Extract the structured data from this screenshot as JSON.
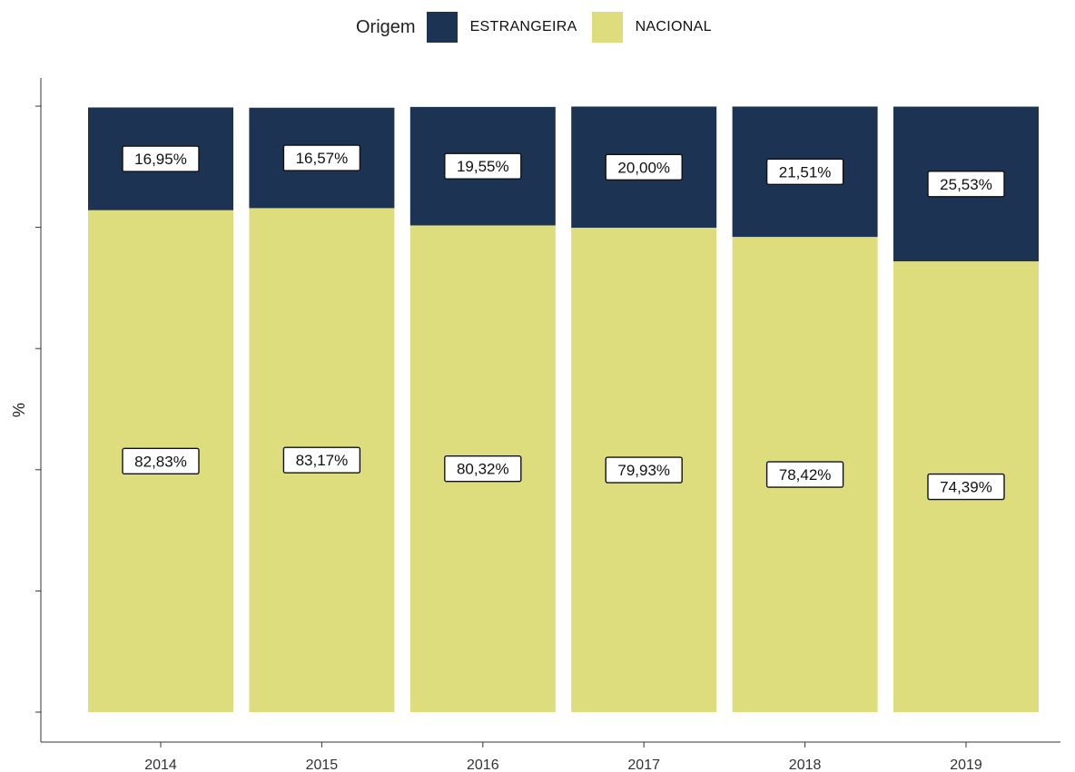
{
  "legend": {
    "title": "Origem",
    "items": [
      {
        "name": "ESTRANGEIRA",
        "color": "#1d3354"
      },
      {
        "name": "NACIONAL",
        "color": "#dedd7d"
      }
    ]
  },
  "chart_data": {
    "type": "bar",
    "stacked": true,
    "categories": [
      "2014",
      "2015",
      "2016",
      "2017",
      "2018",
      "2019"
    ],
    "series": [
      {
        "name": "NACIONAL",
        "color": "#dedd7d",
        "values": [
          82.83,
          83.17,
          80.32,
          79.93,
          78.42,
          74.39
        ],
        "labels": [
          "82,83%",
          "83,17%",
          "80,32%",
          "79,93%",
          "78,42%",
          "74,39%"
        ]
      },
      {
        "name": "ESTRANGEIRA",
        "color": "#1d3354",
        "values": [
          16.95,
          16.57,
          19.55,
          20.0,
          21.51,
          25.53
        ],
        "labels": [
          "16,95%",
          "16,57%",
          "19,55%",
          "20,00%",
          "21,51%",
          "25,53%"
        ]
      }
    ],
    "ylabel": "%",
    "xlabel": "",
    "ylim": [
      0,
      100
    ],
    "y_tick_labels_shown": false,
    "grid": false,
    "legend_position": "top"
  }
}
